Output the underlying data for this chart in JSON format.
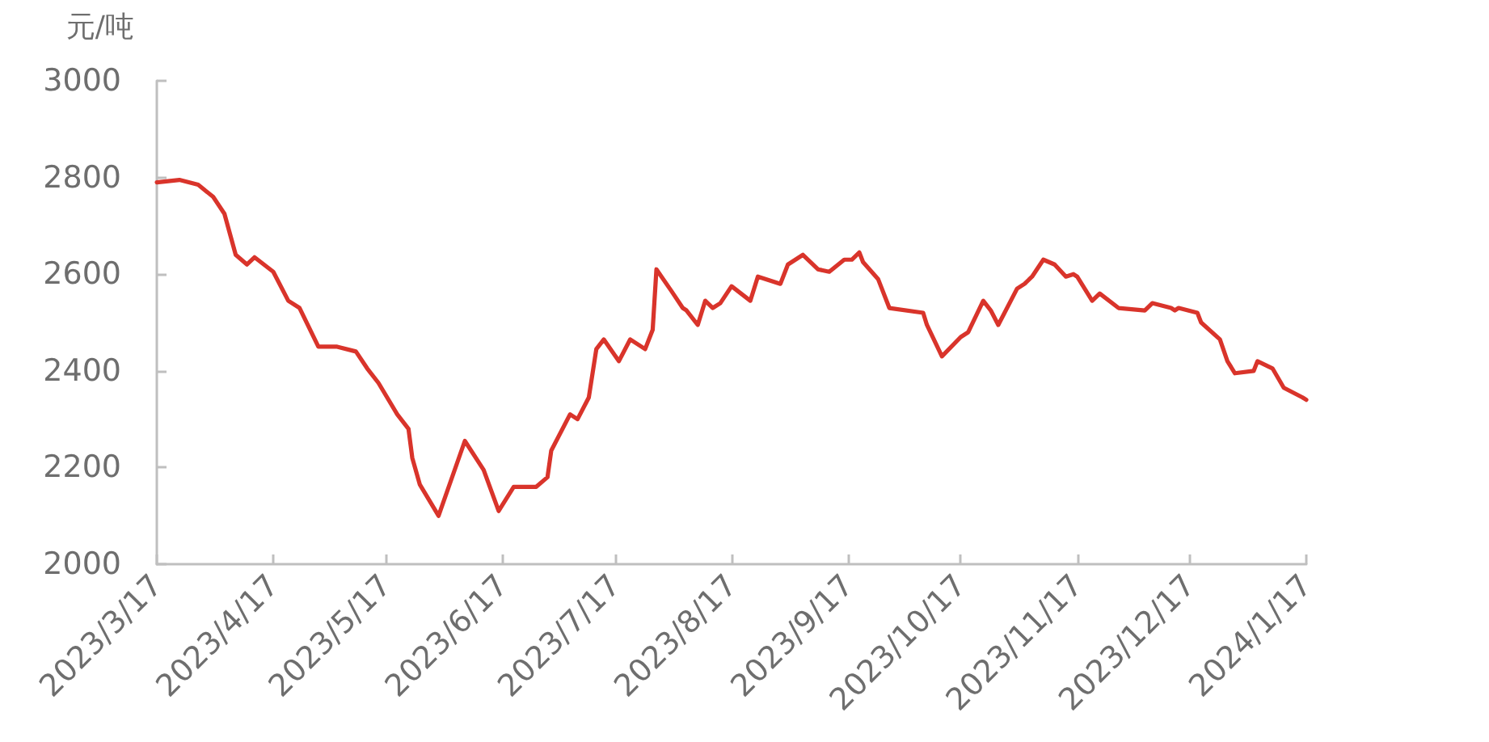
{
  "chart_data": {
    "type": "line",
    "ylabel": "元/吨",
    "x": [
      "2023-03-17",
      "2023-03-23",
      "2023-03-28",
      "2023-04-01",
      "2023-04-04",
      "2023-04-07",
      "2023-04-10",
      "2023-04-12",
      "2023-04-17",
      "2023-04-21",
      "2023-04-24",
      "2023-04-29",
      "2023-05-04",
      "2023-05-09",
      "2023-05-12",
      "2023-05-15",
      "2023-05-20",
      "2023-05-23",
      "2023-05-24",
      "2023-05-26",
      "2023-05-31",
      "2023-06-07",
      "2023-06-12",
      "2023-06-16",
      "2023-06-20",
      "2023-06-26",
      "2023-06-29",
      "2023-06-30",
      "2023-07-05",
      "2023-07-07",
      "2023-07-10",
      "2023-07-12",
      "2023-07-14",
      "2023-07-18",
      "2023-07-21",
      "2023-07-25",
      "2023-07-27",
      "2023-07-28",
      "2023-08-01",
      "2023-08-04",
      "2023-08-05",
      "2023-08-08",
      "2023-08-10",
      "2023-08-12",
      "2023-08-14",
      "2023-08-17",
      "2023-08-22",
      "2023-08-24",
      "2023-08-30",
      "2023-09-01",
      "2023-09-05",
      "2023-09-09",
      "2023-09-12",
      "2023-09-16",
      "2023-09-18",
      "2023-09-20",
      "2023-09-21",
      "2023-09-25",
      "2023-09-28",
      "2023-10-07",
      "2023-10-08",
      "2023-10-12",
      "2023-10-17",
      "2023-10-19",
      "2023-10-23",
      "2023-10-25",
      "2023-10-27",
      "2023-11-01",
      "2023-11-03",
      "2023-11-05",
      "2023-11-08",
      "2023-11-11",
      "2023-11-14",
      "2023-11-16",
      "2023-11-17",
      "2023-11-21",
      "2023-11-23",
      "2023-11-28",
      "2023-12-05",
      "2023-12-07",
      "2023-12-12",
      "2023-12-13",
      "2023-12-14",
      "2023-12-19",
      "2023-12-20",
      "2023-12-25",
      "2023-12-27",
      "2023-12-29",
      "2024-01-03",
      "2024-01-04",
      "2024-01-08",
      "2024-01-11",
      "2024-01-16",
      "2024-01-17"
    ],
    "series": [
      {
        "color": "#d9342b",
        "values": [
          2790,
          2795,
          2785,
          2760,
          2725,
          2640,
          2620,
          2635,
          2605,
          2545,
          2530,
          2450,
          2450,
          2440,
          2405,
          2375,
          2310,
          2280,
          2220,
          2165,
          2100,
          2255,
          2195,
          2110,
          2160,
          2160,
          2180,
          2235,
          2310,
          2300,
          2345,
          2445,
          2465,
          2420,
          2465,
          2445,
          2485,
          2610,
          2565,
          2530,
          2525,
          2495,
          2545,
          2530,
          2540,
          2575,
          2545,
          2595,
          2580,
          2620,
          2640,
          2610,
          2605,
          2630,
          2630,
          2645,
          2625,
          2590,
          2530,
          2520,
          2495,
          2430,
          2470,
          2480,
          2545,
          2525,
          2495,
          2570,
          2580,
          2595,
          2630,
          2620,
          2595,
          2600,
          2595,
          2545,
          2560,
          2530,
          2525,
          2540,
          2530,
          2525,
          2530,
          2520,
          2500,
          2465,
          2420,
          2395,
          2400,
          2420,
          2405,
          2365,
          2345,
          2340
        ]
      }
    ],
    "xlim": [
      "2023-03-17",
      "2024-01-17"
    ],
    "xticks": [
      {
        "value": "2023-03-17",
        "label": "2023/3/17"
      },
      {
        "value": "2023-04-17",
        "label": "2023/4/17"
      },
      {
        "value": "2023-05-17",
        "label": "2023/5/17"
      },
      {
        "value": "2023-06-17",
        "label": "2023/6/17"
      },
      {
        "value": "2023-07-17",
        "label": "2023/7/17"
      },
      {
        "value": "2023-08-17",
        "label": "2023/8/17"
      },
      {
        "value": "2023-09-17",
        "label": "2023/9/17"
      },
      {
        "value": "2023-10-17",
        "label": "2023/10/17"
      },
      {
        "value": "2023-11-17",
        "label": "2023/11/17"
      },
      {
        "value": "2023-12-17",
        "label": "2023/12/17"
      },
      {
        "value": "2024-01-17",
        "label": "2024/1/17"
      }
    ],
    "ylim": [
      2000,
      3000
    ],
    "yticks": [
      2000,
      2200,
      2400,
      2600,
      2800,
      3000
    ],
    "marker": "none",
    "line_style": "solid"
  }
}
